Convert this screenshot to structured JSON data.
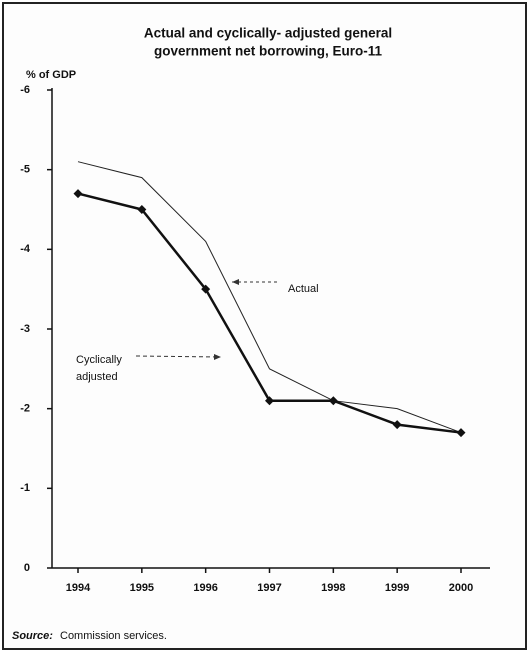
{
  "chart_data": {
    "type": "line",
    "title": [
      "Actual and cyclically- adjusted general",
      "government net borrowing, Euro-11"
    ],
    "y_label": "% of GDP",
    "categories": [
      "1994",
      "1995",
      "1996",
      "1997",
      "1998",
      "1999",
      "2000"
    ],
    "series": [
      {
        "name": "Actual",
        "color": "#222222",
        "line_width": 1,
        "marker": "none",
        "values": [
          -5.1,
          -4.9,
          -4.1,
          -2.5,
          -2.1,
          -2.0,
          -1.7
        ]
      },
      {
        "name": "Cyclically adjusted",
        "color": "#111111",
        "line_width": 2.5,
        "marker": "diamond",
        "values": [
          -4.7,
          -4.5,
          -3.5,
          -2.1,
          -2.1,
          -1.8,
          -1.7
        ]
      }
    ],
    "ylim": [
      0,
      -6
    ],
    "yticks": [
      0,
      -1,
      -2,
      -3,
      -4,
      -5,
      -6
    ],
    "grid": false,
    "source_label": "Source:",
    "source_text": "Commission services."
  }
}
